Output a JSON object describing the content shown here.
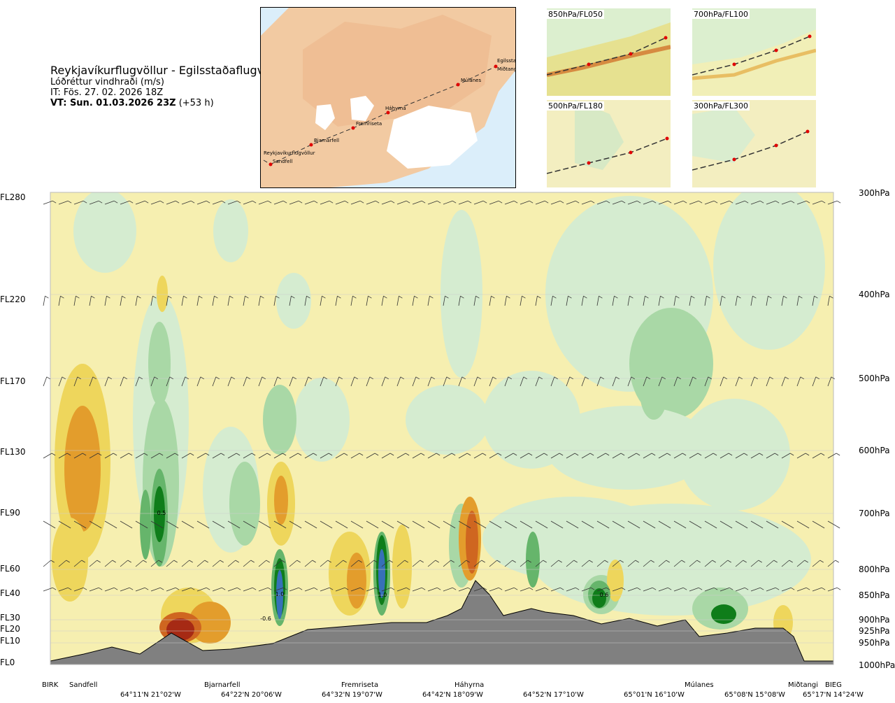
{
  "header": {
    "route": "Reykjavíkurflugvöllur - Egilsstaðaflugvöllur",
    "variable": "Lóðréttur vindhraði (m/s)",
    "init_time": "IT: Fös. 27. 02. 2026 18Z",
    "valid_prefix": "VT: Sun. 01.03.2026 23Z",
    "valid_suffix": " (+53 h)"
  },
  "map": {
    "waypoints": [
      "Reykjavíkurflugvöllur",
      "Sandfell",
      "Bjarnarfell",
      "Fremriseta",
      "Háhyrna",
      "Múlanes",
      "Egilsstaðir",
      "Miðtangi"
    ]
  },
  "mini_maps": [
    {
      "label": "850hPa/FL050"
    },
    {
      "label": "700hPa/FL100"
    },
    {
      "label": "500hPa/FL180"
    },
    {
      "label": "300hPa/FL300"
    }
  ],
  "chart_data": {
    "type": "heatmap",
    "title": "Lóðréttur vindhraði (m/s)",
    "x_axis": {
      "locations": [
        "BIRK",
        "Sandfell",
        "Bjarnarfell",
        "Fremriseta",
        "Háhyrna",
        "Múlanes",
        "Miðtangi",
        "BIEG"
      ],
      "coordinates": [
        "64°11'N 21°02'W",
        "64°22'N 20°06'W",
        "64°32'N 19°07'W",
        "64°42'N 18°09'W",
        "64°52'N 17°10'W",
        "65°01'N 16°10'W",
        "65°08'N 15°08'W",
        "65°17'N 14°24'W"
      ]
    },
    "y_left_flight_levels": [
      "FL280",
      "FL220",
      "FL170",
      "FL130",
      "FL90",
      "FL60",
      "FL40",
      "FL30",
      "FL20",
      "FL10",
      "FL0"
    ],
    "y_right_pressure": [
      "300hPa",
      "400hPa",
      "500hPa",
      "600hPa",
      "700hPa",
      "800hPa",
      "850hPa",
      "900hPa",
      "925hPa",
      "950hPa",
      "1000hPa"
    ],
    "contour_labels": [
      "0.5",
      "1.0",
      "1.0",
      "-0.6",
      "0.6"
    ],
    "colors": {
      "up_strong": "#0f7d1a",
      "up_mid": "#66b56b",
      "up_light": "#a9d8a6",
      "up_faint": "#d5ecd0",
      "down_faint": "#f6efb0",
      "down_light": "#eed65c",
      "down_mid": "#e39d2c",
      "down_strong": "#cf6620",
      "down_max": "#a62a14",
      "up_max": "#3770b8",
      "terrain": "#808080"
    },
    "grid": true
  }
}
